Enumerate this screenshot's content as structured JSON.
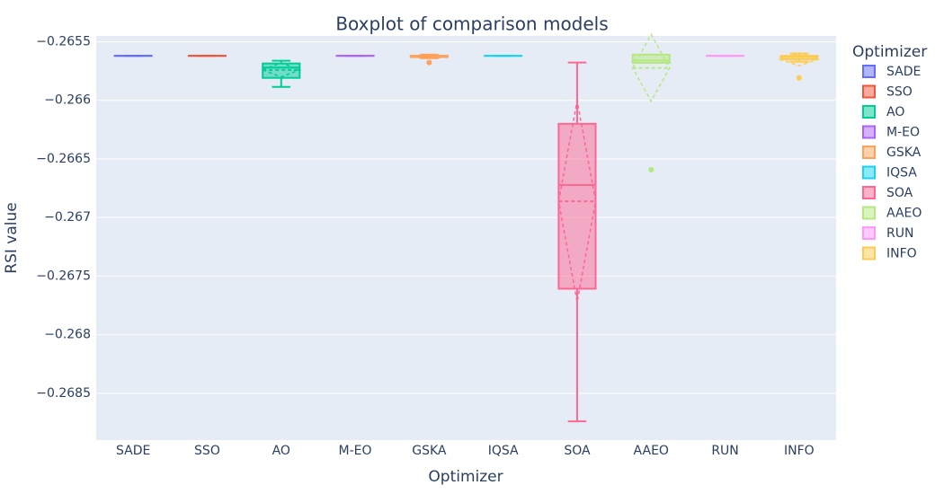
{
  "chart_data": {
    "type": "box",
    "title": "Boxplot of comparison models",
    "x_label": "Optimizer",
    "y_label": "RSI value",
    "legend_title": "Optimizer",
    "legend": "right",
    "grid": true,
    "categories": [
      "SADE",
      "SSO",
      "AO",
      "M-EO",
      "GSKA",
      "IQSA",
      "SOA",
      "AAEO",
      "RUN",
      "INFO"
    ],
    "ylim": [
      -0.2689,
      -0.26545
    ],
    "yticks": [
      {
        "value": -0.2655,
        "label": "−0.2655"
      },
      {
        "value": -0.266,
        "label": "−0.266"
      },
      {
        "value": -0.2665,
        "label": "−0.2665"
      },
      {
        "value": -0.267,
        "label": "−0.267"
      },
      {
        "value": -0.2675,
        "label": "−0.2675"
      },
      {
        "value": -0.268,
        "label": "−0.268"
      },
      {
        "value": -0.2685,
        "label": "−0.2685"
      }
    ],
    "series": [
      {
        "name": "SADE",
        "color": "#636efa",
        "min": -0.26562,
        "q1": -0.26562,
        "median": -0.26562,
        "q3": -0.26562,
        "max": -0.26562,
        "outliers": []
      },
      {
        "name": "SSO",
        "color": "#EF553B",
        "min": -0.26562,
        "q1": -0.26562,
        "median": -0.26562,
        "q3": -0.26562,
        "max": -0.26562,
        "outliers": []
      },
      {
        "name": "AO",
        "color": "#00cc96",
        "min": -0.265885,
        "q1": -0.265808,
        "median": -0.26572,
        "q3": -0.265685,
        "max": -0.265662,
        "mean": -0.26574,
        "sd": 6e-05,
        "outliers": []
      },
      {
        "name": "M-EO",
        "color": "#ab63fa",
        "min": -0.26562,
        "q1": -0.26562,
        "median": -0.26562,
        "q3": -0.26562,
        "max": -0.26562,
        "outliers": []
      },
      {
        "name": "GSKA",
        "color": "#FFA15A",
        "min": -0.26564,
        "q1": -0.26563,
        "median": -0.26562,
        "q3": -0.26562,
        "max": -0.26561,
        "mean": -0.26563,
        "sd": 1e-05,
        "outliers": [
          -0.265677
        ]
      },
      {
        "name": "IQSA",
        "color": "#19d3f3",
        "min": -0.26562,
        "q1": -0.26562,
        "median": -0.26562,
        "q3": -0.26562,
        "max": -0.26562,
        "outliers": []
      },
      {
        "name": "SOA",
        "color": "#FF6692",
        "min": -0.26874,
        "q1": -0.267608,
        "median": -0.266723,
        "q3": -0.2662,
        "max": -0.265677,
        "mean": -0.266862,
        "sd": 0.00086,
        "outliers": []
      },
      {
        "name": "AAEO",
        "color": "#B6E880",
        "min": -0.26568,
        "q1": -0.26568,
        "median": -0.26566,
        "q3": -0.26561,
        "max": -0.26561,
        "mean": -0.265723,
        "sd": 0.000285,
        "outliers": [
          -0.266592
        ]
      },
      {
        "name": "RUN",
        "color": "#FF97FF",
        "min": -0.26562,
        "q1": -0.26562,
        "median": -0.26562,
        "q3": -0.26562,
        "max": -0.26562,
        "outliers": []
      },
      {
        "name": "INFO",
        "color": "#FECB52",
        "min": -0.26567,
        "q1": -0.26565,
        "median": -0.26563,
        "q3": -0.26562,
        "max": -0.2656,
        "mean": -0.26565,
        "sd": 5.5e-05,
        "outliers": [
          -0.265808
        ]
      }
    ]
  }
}
